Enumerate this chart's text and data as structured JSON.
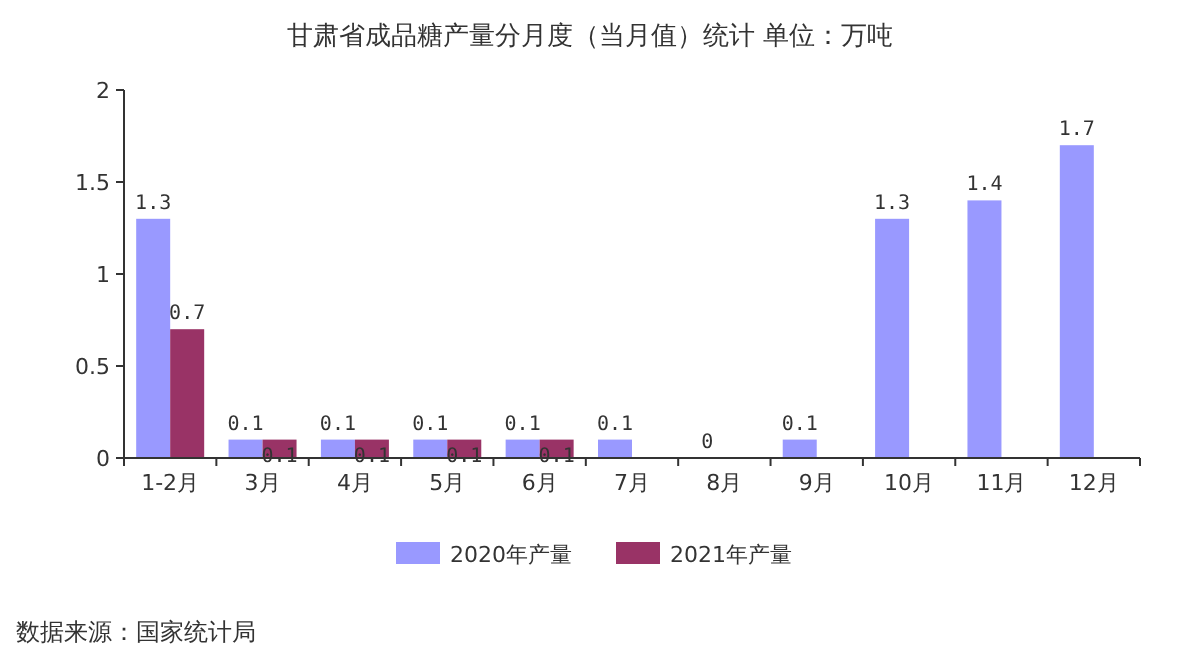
{
  "chart_data": {
    "type": "bar",
    "title": "甘肃省成品糖产量分月度（当月值）统计 单位：万吨",
    "categories": [
      "1-2月",
      "3月",
      "4月",
      "5月",
      "6月",
      "7月",
      "8月",
      "9月",
      "10月",
      "11月",
      "12月"
    ],
    "series": [
      {
        "name": "2020年产量",
        "color": "#9999ff",
        "values": [
          1.3,
          0.1,
          0.1,
          0.1,
          0.1,
          0.1,
          0,
          0.1,
          1.3,
          1.4,
          1.7
        ]
      },
      {
        "name": "2021年产量",
        "color": "#993366",
        "values": [
          0.7,
          0.1,
          0.1,
          0.1,
          0.1,
          null,
          null,
          null,
          null,
          null,
          null
        ]
      }
    ],
    "ylim": [
      0,
      2
    ],
    "yticks": [
      0,
      0.5,
      1,
      1.5,
      2
    ],
    "data_labels": true,
    "legend": "bottom",
    "annotations": [
      "数据来源：国家统计局"
    ]
  }
}
